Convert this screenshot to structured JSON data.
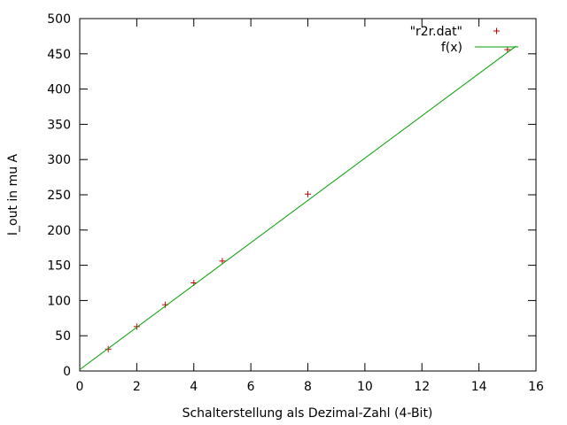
{
  "chart_data": {
    "type": "scatter",
    "xlabel": "Schalterstellung als Dezimal-Zahl (4-Bit)",
    "ylabel": "I_out in mu A",
    "xlim": [
      0,
      16
    ],
    "ylim": [
      0,
      500
    ],
    "xticks": [
      0,
      2,
      4,
      6,
      8,
      10,
      12,
      14,
      16
    ],
    "yticks": [
      0,
      50,
      100,
      150,
      200,
      250,
      300,
      350,
      400,
      450,
      500
    ],
    "grid": false,
    "legend_position": "top-right",
    "series": [
      {
        "name": "\"r2r.dat\"",
        "kind": "points",
        "color": "#cc0000",
        "marker": "plus",
        "x": [
          1,
          2,
          3,
          4,
          5,
          8,
          15
        ],
        "y": [
          31,
          63,
          94,
          125,
          156,
          251,
          456
        ]
      },
      {
        "name": "f(x)",
        "kind": "line",
        "color": "#00a000",
        "x": [
          0,
          15.3
        ],
        "y": [
          2,
          461
        ]
      }
    ]
  }
}
